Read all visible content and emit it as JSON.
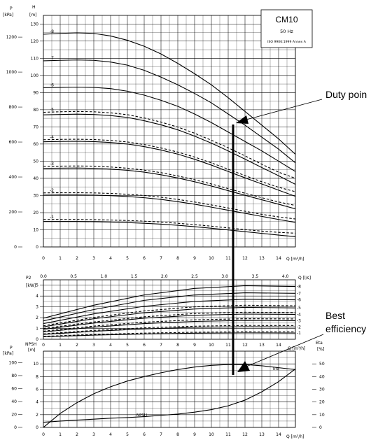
{
  "chart_data": [
    {
      "type": "line",
      "panel": "head",
      "model_box": {
        "name": "CM10",
        "frequency": "50 Hz",
        "standard": "ISO 9906:1999 Annex A"
      },
      "left_axis_unit": "P",
      "left_axis_unit2": "[kPa]",
      "head_axis_label": "H",
      "head_axis_unit": "[m]",
      "x_axis_label": "Q [m³/h]",
      "xlim": [
        0,
        15
      ],
      "ylim": [
        0,
        135
      ],
      "x_ticks": [
        "0",
        "1",
        "2",
        "3",
        "4",
        "5",
        "6",
        "7",
        "8",
        "9",
        "10",
        "11",
        "12",
        "13",
        "14"
      ],
      "head_ticks": [
        "0",
        "10",
        "20",
        "30",
        "40",
        "50",
        "60",
        "70",
        "80",
        "90",
        "100",
        "110",
        "120",
        "130"
      ],
      "pressure_ticks": [
        "0",
        "200",
        "400",
        "600",
        "800",
        "1000",
        "1200"
      ],
      "series": [
        {
          "name": "-8",
          "style": "solid",
          "x": [
            0,
            1,
            2,
            3,
            4,
            5,
            6,
            7,
            8,
            9,
            10,
            11,
            12,
            13,
            14,
            15
          ],
          "y": [
            124,
            124.5,
            124.8,
            124.5,
            123,
            120.5,
            117,
            112.5,
            107,
            101,
            94.5,
            87,
            79,
            71,
            63,
            54
          ]
        },
        {
          "name": "-7",
          "style": "solid",
          "x": [
            0,
            1,
            2,
            3,
            4,
            5,
            6,
            7,
            8,
            9,
            10,
            11,
            12,
            13,
            14,
            15
          ],
          "y": [
            108.5,
            108.8,
            109,
            108.8,
            107.8,
            106,
            103,
            99,
            94.5,
            89.5,
            84,
            77.5,
            71,
            64,
            57,
            49
          ]
        },
        {
          "name": "-6",
          "style": "solid",
          "x": [
            0,
            1,
            2,
            3,
            4,
            5,
            6,
            7,
            8,
            9,
            10,
            11,
            12,
            13,
            14,
            15
          ],
          "y": [
            92.8,
            93,
            93.2,
            93,
            92.3,
            90.8,
            88.5,
            85.5,
            82,
            77.5,
            72.5,
            67,
            61.5,
            56,
            50,
            44
          ]
        },
        {
          "name": "-5",
          "style": "dashed",
          "x": [
            0,
            1,
            2,
            3,
            4,
            5,
            6,
            7,
            8,
            9,
            10,
            11,
            12,
            13,
            14,
            15
          ],
          "y": [
            78.5,
            78.8,
            79,
            78.8,
            78.2,
            77.1,
            75.2,
            72.8,
            69.9,
            66.3,
            62.2,
            57.8,
            53.1,
            48.2,
            43.6,
            40
          ]
        },
        {
          "name": "-5",
          "style": "solid",
          "x": [
            0,
            1,
            2,
            3,
            4,
            5,
            6,
            7,
            8,
            9,
            10,
            11,
            12,
            13,
            14,
            15
          ],
          "y": [
            77,
            77.2,
            77.4,
            77.2,
            76.6,
            75.5,
            73.6,
            71.2,
            68.3,
            64.6,
            60.5,
            56,
            51.2,
            46.3,
            41.5,
            36.5
          ]
        },
        {
          "name": "-4",
          "style": "dashed",
          "x": [
            0,
            1,
            2,
            3,
            4,
            5,
            6,
            7,
            8,
            9,
            10,
            11,
            12,
            13,
            14,
            15
          ],
          "y": [
            62.5,
            62.7,
            62.8,
            62.6,
            62.1,
            61.2,
            59.7,
            57.7,
            55.3,
            52.4,
            49,
            45.3,
            41.6,
            38,
            34.8,
            32.2
          ]
        },
        {
          "name": "-4",
          "style": "solid",
          "x": [
            0,
            1,
            2,
            3,
            4,
            5,
            6,
            7,
            8,
            9,
            10,
            11,
            12,
            13,
            14,
            15
          ],
          "y": [
            61.3,
            61.5,
            61.6,
            61.4,
            60.9,
            60,
            58.5,
            56.5,
            54.1,
            51.1,
            47.7,
            44,
            40.3,
            36.7,
            33.1,
            29.5
          ]
        },
        {
          "name": "-3",
          "style": "dashed",
          "x": [
            0,
            1,
            2,
            3,
            4,
            5,
            6,
            7,
            8,
            9,
            10,
            11,
            12,
            13,
            14,
            15
          ],
          "y": [
            47,
            47.1,
            47.2,
            47.1,
            46.6,
            45.9,
            44.8,
            43.3,
            41.4,
            39.2,
            36.7,
            34,
            31.3,
            28.7,
            26.2,
            24.2
          ]
        },
        {
          "name": "-3",
          "style": "solid",
          "x": [
            0,
            1,
            2,
            3,
            4,
            5,
            6,
            7,
            8,
            9,
            10,
            11,
            12,
            13,
            14,
            15
          ],
          "y": [
            45.8,
            45.9,
            46,
            45.8,
            45.4,
            44.7,
            43.6,
            42.1,
            40.2,
            38,
            35.5,
            32.8,
            30.1,
            27.5,
            24.9,
            22.2
          ]
        },
        {
          "name": "-2",
          "style": "dashed",
          "x": [
            0,
            1,
            2,
            3,
            4,
            5,
            6,
            7,
            8,
            9,
            10,
            11,
            12,
            13,
            14,
            15
          ],
          "y": [
            31.5,
            31.6,
            31.6,
            31.5,
            31.2,
            30.7,
            30,
            29,
            27.7,
            26.2,
            24.5,
            22.7,
            20.8,
            19,
            17.5,
            16.3
          ]
        },
        {
          "name": "-2",
          "style": "solid",
          "x": [
            0,
            1,
            2,
            3,
            4,
            5,
            6,
            7,
            8,
            9,
            10,
            11,
            12,
            13,
            14,
            15
          ],
          "y": [
            30.2,
            30.3,
            30.3,
            30.2,
            29.9,
            29.4,
            28.7,
            27.7,
            26.4,
            24.9,
            23.2,
            21.4,
            19.6,
            17.8,
            16,
            14.3
          ]
        },
        {
          "name": "-1",
          "style": "dashed",
          "x": [
            0,
            1,
            2,
            3,
            4,
            5,
            6,
            7,
            8,
            9,
            10,
            11,
            12,
            13,
            14,
            15
          ],
          "y": [
            16,
            16,
            16,
            15.9,
            15.7,
            15.4,
            15,
            14.5,
            13.8,
            13,
            12.1,
            11.1,
            10.1,
            9.2,
            8.5,
            8
          ]
        },
        {
          "name": "-1",
          "style": "solid",
          "x": [
            0,
            1,
            2,
            3,
            4,
            5,
            6,
            7,
            8,
            9,
            10,
            11,
            12,
            13,
            14,
            15
          ],
          "y": [
            14.8,
            14.8,
            14.8,
            14.7,
            14.5,
            14.2,
            13.8,
            13.3,
            12.6,
            11.8,
            10.9,
            9.9,
            8.9,
            7.9,
            6.9,
            6
          ]
        }
      ]
    },
    {
      "type": "line",
      "panel": "power",
      "y_axis_label": "P2",
      "y_axis_unit": "[kW]",
      "top_axis_label": "Q [l/s]",
      "top_ticks": [
        "0.0",
        "0.5",
        "1.0",
        "1.5",
        "2.0",
        "2.5",
        "3.0",
        "3.5",
        "4.0"
      ],
      "x_axis_label": "Q [m³/h]",
      "xlim": [
        0,
        15
      ],
      "ylim": [
        0,
        5.5
      ],
      "y_ticks": [
        "0",
        "1",
        "2",
        "3",
        "4",
        "5"
      ],
      "right_labels": [
        "-8",
        "-7",
        "-6",
        "-5",
        "-4",
        "-3",
        "-2",
        "-1"
      ],
      "series": [
        {
          "name": "-8",
          "style": "solid",
          "x": [
            0,
            3,
            6,
            9,
            12,
            15
          ],
          "y": [
            1.95,
            3.15,
            4.1,
            4.7,
            4.95,
            4.88
          ]
        },
        {
          "name": "-7",
          "style": "solid",
          "x": [
            0,
            3,
            6,
            9,
            12,
            15
          ],
          "y": [
            1.7,
            2.75,
            3.6,
            4.1,
            4.3,
            4.25
          ]
        },
        {
          "name": "-6",
          "style": "solid",
          "x": [
            0,
            3,
            6,
            9,
            12,
            15
          ],
          "y": [
            1.45,
            2.35,
            3.05,
            3.5,
            3.7,
            3.65
          ]
        },
        {
          "name": "-5",
          "style": "dashed",
          "x": [
            0,
            3,
            6,
            9,
            12,
            15
          ],
          "y": [
            1.25,
            2.02,
            2.62,
            3.0,
            3.15,
            3.1
          ]
        },
        {
          "name": "-5",
          "style": "solid",
          "x": [
            0,
            3,
            6,
            9,
            12,
            15
          ],
          "y": [
            1.15,
            1.9,
            2.45,
            2.8,
            2.95,
            2.9
          ]
        },
        {
          "name": "-4",
          "style": "dashed",
          "x": [
            0,
            3,
            6,
            9,
            12,
            15
          ],
          "y": [
            1.0,
            1.6,
            2.08,
            2.38,
            2.5,
            2.47
          ]
        },
        {
          "name": "-4",
          "style": "solid",
          "x": [
            0,
            3,
            6,
            9,
            12,
            15
          ],
          "y": [
            0.92,
            1.5,
            1.95,
            2.22,
            2.33,
            2.3
          ]
        },
        {
          "name": "-3",
          "style": "dashed",
          "x": [
            0,
            3,
            6,
            9,
            12,
            15
          ],
          "y": [
            0.75,
            1.22,
            1.58,
            1.8,
            1.9,
            1.88
          ]
        },
        {
          "name": "-3",
          "style": "solid",
          "x": [
            0,
            3,
            6,
            9,
            12,
            15
          ],
          "y": [
            0.68,
            1.12,
            1.45,
            1.65,
            1.74,
            1.72
          ]
        },
        {
          "name": "-2",
          "style": "dashed",
          "x": [
            0,
            3,
            6,
            9,
            12,
            15
          ],
          "y": [
            0.5,
            0.82,
            1.06,
            1.21,
            1.28,
            1.27
          ]
        },
        {
          "name": "-2",
          "style": "solid",
          "x": [
            0,
            3,
            6,
            9,
            12,
            15
          ],
          "y": [
            0.45,
            0.74,
            0.96,
            1.1,
            1.16,
            1.14
          ]
        },
        {
          "name": "-1",
          "style": "dashed",
          "x": [
            0,
            3,
            6,
            9,
            12,
            15
          ],
          "y": [
            0.27,
            0.44,
            0.57,
            0.65,
            0.69,
            0.68
          ]
        },
        {
          "name": "-1",
          "style": "solid",
          "x": [
            0,
            3,
            6,
            9,
            12,
            15
          ],
          "y": [
            0.23,
            0.38,
            0.49,
            0.56,
            0.59,
            0.58
          ]
        }
      ]
    },
    {
      "type": "line",
      "panel": "npsh-eta",
      "left_axis_unit": "P",
      "left_axis_unit2": "[kPa]",
      "npsh_axis_label": "NPSH",
      "npsh_axis_unit": "[m]",
      "eta_axis_label": "Eta",
      "eta_axis_unit": "[%]",
      "x_axis_label": "Q [m³/h]",
      "xlim": [
        0,
        15
      ],
      "npsh_ylim": [
        0,
        12
      ],
      "eta_ylim": [
        0,
        60
      ],
      "x_ticks": [
        "0",
        "1",
        "2",
        "3",
        "4",
        "5",
        "6",
        "7",
        "8",
        "9",
        "10",
        "11",
        "12",
        "13",
        "14"
      ],
      "npsh_ticks": [
        "0",
        "2",
        "4",
        "6",
        "8",
        "10"
      ],
      "pressure_ticks": [
        "0",
        "20",
        "40",
        "60",
        "80",
        "100"
      ],
      "eta_ticks": [
        "0",
        "10",
        "20",
        "30",
        "40",
        "50"
      ],
      "series": [
        {
          "name": "Eta",
          "axis": "eta",
          "x": [
            0,
            1,
            2,
            3,
            4,
            5,
            6,
            7,
            8,
            9,
            10,
            11,
            12,
            13,
            14,
            15
          ],
          "y": [
            0,
            11,
            19.5,
            26.5,
            32,
            36.5,
            40,
            43,
            45.5,
            47.5,
            48.8,
            49.5,
            49.5,
            48.5,
            47,
            45.5
          ]
        },
        {
          "name": "NPSH",
          "axis": "npsh",
          "x": [
            0,
            1,
            2,
            3,
            4,
            5,
            6,
            7,
            8,
            9,
            10,
            11,
            12,
            13,
            14,
            15
          ],
          "y": [
            0.8,
            1.0,
            1.15,
            1.3,
            1.45,
            1.55,
            1.7,
            1.9,
            2.1,
            2.4,
            2.8,
            3.4,
            4.3,
            5.6,
            7.2,
            9.2
          ]
        }
      ]
    }
  ],
  "annotations": {
    "duty_point": "Duty poin",
    "best_efficiency_line1": "Best",
    "best_efficiency_line2": "efficiency"
  }
}
